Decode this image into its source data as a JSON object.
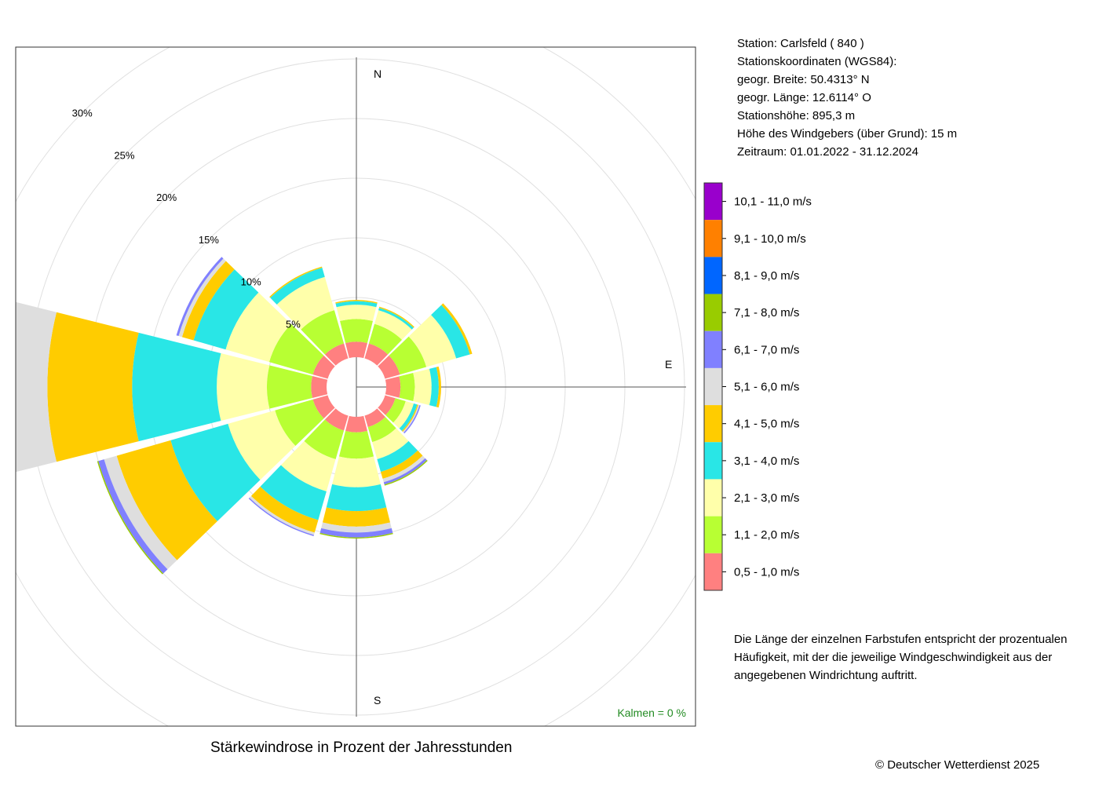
{
  "station": {
    "line1": "Station:  Carlsfeld  ( 840 )",
    "line2": "Stationskoordinaten (WGS84):",
    "line3": "geogr. Breite: 50.4313° N",
    "line4": "geogr. Länge: 12.6114° O",
    "line5": "Stationshöhe: 895,3 m",
    "line6": "Höhe des Windgebers (über Grund): 15 m",
    "line7": "Zeitraum: 01.01.2022 - 31.12.2024"
  },
  "note": "Die Länge der einzelnen Farbstufen entspricht der prozentualen Häufigkeit, mit der die jeweilige Windgeschwindigkeit aus der angegebenen Windrichtung auftritt.",
  "copyright": "© Deutscher Wetterdienst  2025",
  "chart_data": {
    "type": "windrose",
    "title": "Stärkewindrose in Prozent der Jahresstunden",
    "calm_label": "Kalmen  =  0 %",
    "compass": {
      "north": "N",
      "east": "E",
      "south": "S"
    },
    "ring_values": [
      5,
      10,
      15,
      20,
      25,
      30
    ],
    "ring_labels": [
      "5%",
      "10%",
      "15%",
      "20%",
      "25%",
      "30%"
    ],
    "grid": true,
    "legend_position": "right",
    "speed_classes": [
      {
        "label": "0,5 - 1,0 m/s",
        "color": "#ff8080"
      },
      {
        "label": "1,1 - 2,0 m/s",
        "color": "#b8ff33"
      },
      {
        "label": "2,1 - 3,0 m/s",
        "color": "#ffffaa"
      },
      {
        "label": "3,1 - 4,0 m/s",
        "color": "#29e6e6"
      },
      {
        "label": "4,1 - 5,0 m/s",
        "color": "#ffcc00"
      },
      {
        "label": "5,1 - 6,0 m/s",
        "color": "#dedede"
      },
      {
        "label": "6,1 - 7,0 m/s",
        "color": "#8080ff"
      },
      {
        "label": "7,1 - 8,0 m/s",
        "color": "#99cc00"
      },
      {
        "label": "8,1 - 9,0 m/s",
        "color": "#0066ff"
      },
      {
        "label": "9,1 - 10,0 m/s",
        "color": "#ff8000"
      },
      {
        "label": "10,1 - 11,0 m/s",
        "color": "#9900cc"
      }
    ],
    "directions_deg": [
      0,
      30,
      60,
      90,
      120,
      150,
      180,
      210,
      240,
      270,
      300,
      330
    ],
    "series": [
      {
        "direction": 0,
        "values": [
          1.3,
          1.9,
          1.2,
          0.3,
          0.1,
          0,
          0,
          0,
          0,
          0,
          0
        ]
      },
      {
        "direction": 30,
        "values": [
          1.3,
          1.7,
          1.2,
          0.2,
          0.1,
          0,
          0,
          0,
          0,
          0,
          0
        ]
      },
      {
        "direction": 60,
        "values": [
          1.3,
          2.3,
          2.6,
          1.2,
          0.2,
          0,
          0,
          0,
          0,
          0,
          0
        ]
      },
      {
        "direction": 90,
        "values": [
          1.2,
          1.2,
          1.4,
          0.6,
          0.2,
          0,
          0,
          0,
          0,
          0,
          0
        ]
      },
      {
        "direction": 120,
        "values": [
          0.9,
          0.9,
          0.7,
          0.3,
          0.1,
          0.1,
          0.1,
          0,
          0,
          0,
          0
        ]
      },
      {
        "direction": 150,
        "values": [
          1.0,
          1.3,
          1.5,
          1.1,
          0.6,
          0.3,
          0.2,
          0.1,
          0,
          0,
          0
        ]
      },
      {
        "direction": 180,
        "values": [
          1.3,
          2.2,
          2.4,
          2.0,
          1.3,
          0.5,
          0.4,
          0.1,
          0,
          0,
          0
        ]
      },
      {
        "direction": 210,
        "values": [
          1.3,
          2.5,
          2.8,
          2.5,
          1.1,
          0.2,
          0.1,
          0,
          0,
          0,
          0
        ]
      },
      {
        "direction": 240,
        "values": [
          1.3,
          3.3,
          4.1,
          5.0,
          4.7,
          1.1,
          0.5,
          0.1,
          0,
          0,
          0
        ]
      },
      {
        "direction": 270,
        "values": [
          1.3,
          3.7,
          4.2,
          7.1,
          7.1,
          4.1,
          2.0,
          0.7,
          0.1,
          0,
          0
        ]
      },
      {
        "direction": 300,
        "values": [
          1.3,
          3.8,
          3.8,
          2.8,
          1.0,
          0.3,
          0.2,
          0,
          0,
          0,
          0
        ]
      },
      {
        "direction": 330,
        "values": [
          1.3,
          2.9,
          2.9,
          0.8,
          0.1,
          0,
          0,
          0,
          0,
          0,
          0
        ]
      }
    ]
  }
}
